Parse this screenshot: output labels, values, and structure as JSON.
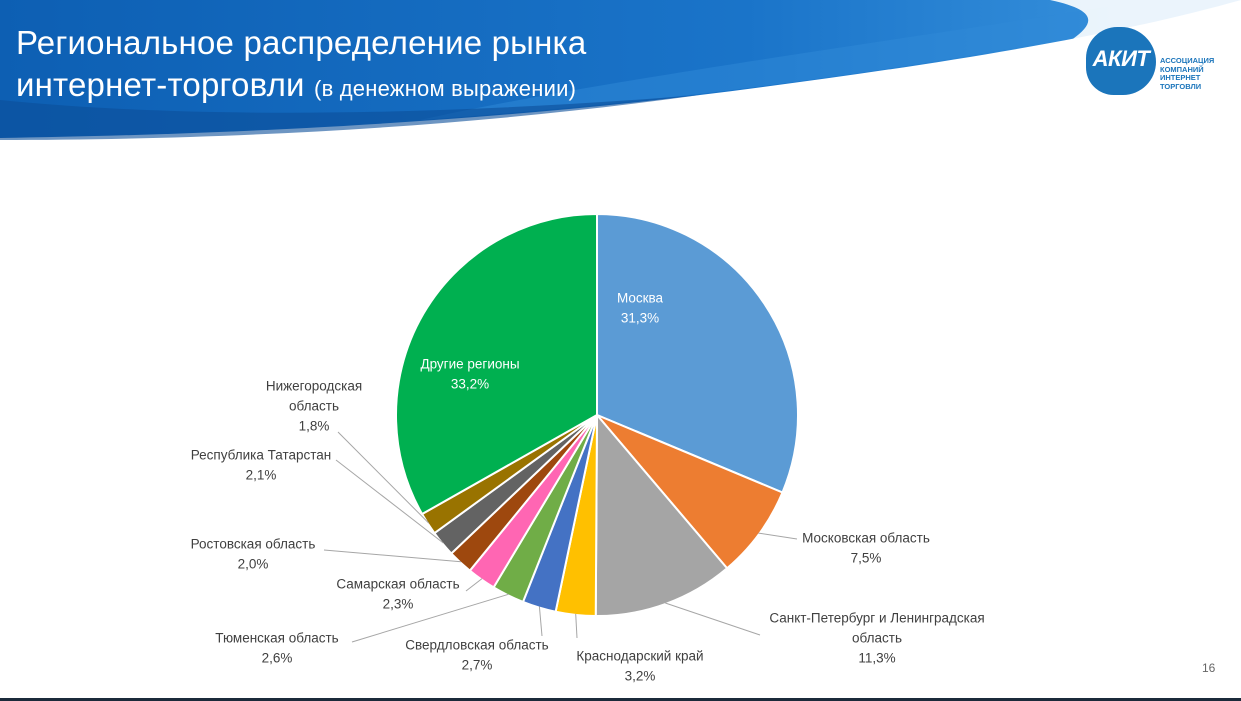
{
  "header": {
    "title_line1": "Региональное распределение рынка",
    "title_line2": "интернет-торговли",
    "title_note": "(в денежном выражении)"
  },
  "logo": {
    "mark": "АКИТ",
    "lines": [
      "АССОЦИАЦИЯ",
      "КОМПАНИЙ",
      "ИНТЕРНЕТ",
      "ТОРГОВЛИ"
    ],
    "color": "#1b75bb"
  },
  "page_number": "16",
  "chart_data": {
    "type": "pie",
    "title": "",
    "start": "12 o'clock",
    "direction": "clockwise",
    "slices": [
      {
        "label": "Москва",
        "value": 31.3,
        "value_label": "31,3%",
        "color": "#5b9bd5"
      },
      {
        "label": "Московская область",
        "value": 7.5,
        "value_label": "7,5%",
        "color": "#ed7d31"
      },
      {
        "label": "Санкт-Петербург и Ленинградская область",
        "value": 11.3,
        "value_label": "11,3%",
        "color": "#a5a5a5"
      },
      {
        "label": "Краснодарский край",
        "value": 3.2,
        "value_label": "3,2%",
        "color": "#ffc000"
      },
      {
        "label": "Свердловская область",
        "value": 2.7,
        "value_label": "2,7%",
        "color": "#4472c4"
      },
      {
        "label": "Тюменская область",
        "value": 2.6,
        "value_label": "2,6%",
        "color": "#70ad47"
      },
      {
        "label": "Самарская область",
        "value": 2.3,
        "value_label": "2,3%",
        "color": "#ff66b3"
      },
      {
        "label": "Ростовская область",
        "value": 2.0,
        "value_label": "2,0%",
        "color": "#9e480e"
      },
      {
        "label": "Республика Татарстан",
        "value": 2.1,
        "value_label": "2,1%",
        "color": "#636363"
      },
      {
        "label": "Нижегородская область",
        "value": 1.8,
        "value_label": "1,8%",
        "color": "#997300"
      },
      {
        "label": "Другие регионы",
        "value": 33.2,
        "value_label": "33,2%",
        "color": "#00b050"
      }
    ]
  }
}
